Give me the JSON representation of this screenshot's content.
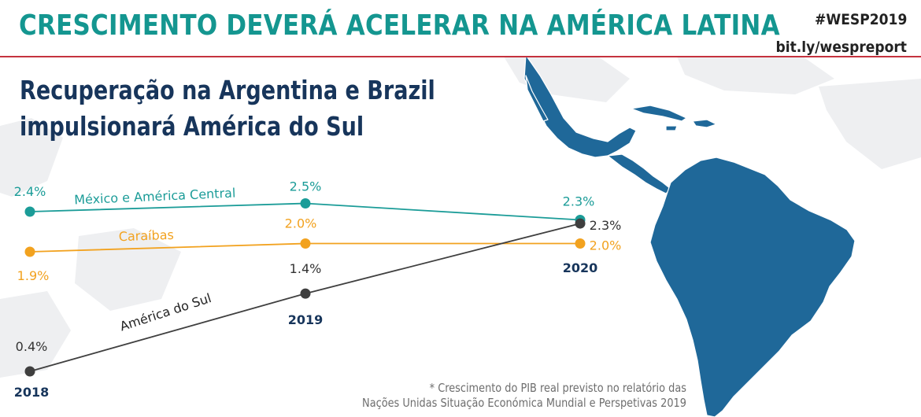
{
  "header": {
    "title": "CRESCIMENTO DEVERÁ ACELERAR NA AMÉRICA LATINA",
    "hashtag": "#WESP2019",
    "link": "bit.ly/wespreport"
  },
  "subtitle": {
    "line1": "Recuperação na Argentina e Brazil",
    "line2": "impulsionará América do Sul"
  },
  "footnote": {
    "line1": "* Crescimento do PIB real previsto no relatório das",
    "line2": "Nações Unidas Situação Económica Mundial e Perspetivas 2019"
  },
  "colors": {
    "title": "#149690",
    "rule": "#c5323e",
    "subtitle": "#17355b",
    "map": "#1f6899"
  },
  "chart_data": {
    "type": "line",
    "x": [
      "2018",
      "2019",
      "2020"
    ],
    "x_unit": "year",
    "y_unit": "% real GDP growth",
    "series": [
      {
        "name": "México e América Central",
        "values": [
          2.4,
          2.5,
          2.3
        ],
        "labels": [
          "2.4%",
          "2.5%",
          "2.3%"
        ],
        "color": "#1b9c98"
      },
      {
        "name": "Caraíbas",
        "values": [
          1.9,
          2.0,
          2.0
        ],
        "labels": [
          "1.9%",
          "2.0%",
          "2.0%"
        ],
        "color": "#f2a21f"
      },
      {
        "name": "América do Sul",
        "values": [
          0.4,
          1.4,
          2.3
        ],
        "labels": [
          "0.4%",
          "1.4%",
          "2.3%"
        ],
        "color": "#3f3f3f"
      }
    ],
    "grid": false,
    "legend": "inline labels on lines"
  }
}
